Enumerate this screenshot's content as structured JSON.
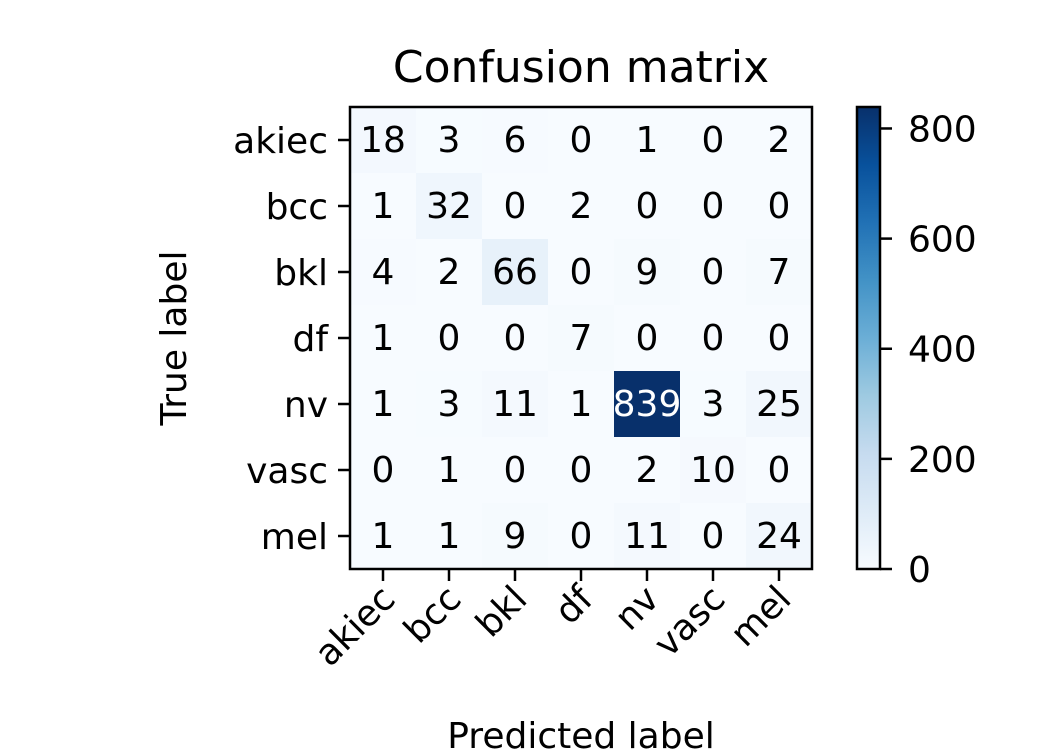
{
  "chart_data": {
    "type": "heatmap",
    "title": "Confusion matrix",
    "xlabel": "Predicted label",
    "ylabel": "True label",
    "x_categories": [
      "akiec",
      "bcc",
      "bkl",
      "df",
      "nv",
      "vasc",
      "mel"
    ],
    "y_categories": [
      "akiec",
      "bcc",
      "bkl",
      "df",
      "nv",
      "vasc",
      "mel"
    ],
    "values": [
      [
        18,
        3,
        6,
        0,
        1,
        0,
        2
      ],
      [
        1,
        32,
        0,
        2,
        0,
        0,
        0
      ],
      [
        4,
        2,
        66,
        0,
        9,
        0,
        7
      ],
      [
        1,
        0,
        0,
        7,
        0,
        0,
        0
      ],
      [
        1,
        3,
        11,
        1,
        839,
        3,
        25
      ],
      [
        0,
        1,
        0,
        0,
        2,
        10,
        0
      ],
      [
        1,
        1,
        9,
        0,
        11,
        0,
        24
      ]
    ],
    "colormap": "Blues",
    "colorbar": {
      "range": [
        0,
        839
      ],
      "ticks": [
        0,
        200,
        400,
        600,
        800
      ]
    },
    "colors": {
      "low": "#f7fbff",
      "high": "#08306b",
      "text_dark": "#000000",
      "text_light": "#ffffff"
    }
  }
}
